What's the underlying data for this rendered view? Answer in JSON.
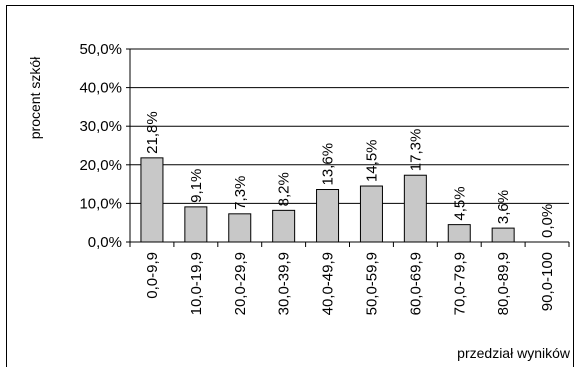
{
  "chart_data": {
    "type": "bar",
    "categories": [
      "0,0-9,9",
      "10,0-19,9",
      "20,0-29,9",
      "30,0-39,9",
      "40,0-49,9",
      "50,0-59,9",
      "60,0-69,9",
      "70,0-79,9",
      "80,0-89,9",
      "90,0-100"
    ],
    "values": [
      21.8,
      9.1,
      7.3,
      8.2,
      13.6,
      14.5,
      17.3,
      4.5,
      3.6,
      0.0
    ],
    "value_labels": [
      "21,8%",
      "9,1%",
      "7,3%",
      "8,2%",
      "13,6%",
      "14,5%",
      "17,3%",
      "4,5%",
      "3,6%",
      "0,0%"
    ],
    "ylabel": "procent szkół",
    "xlabel": "przedział wyników",
    "ylim": [
      0,
      50
    ],
    "yticks": [
      0,
      10,
      20,
      30,
      40,
      50
    ],
    "ytick_labels": [
      "0,0%",
      "10,0%",
      "20,0%",
      "30,0%",
      "40,0%",
      "50,0%"
    ],
    "grid": "horizontal",
    "legend": "none",
    "colors": {
      "bar_fill": "#c8c8c8",
      "bar_stroke": "#000000",
      "grid": "#000000"
    }
  }
}
